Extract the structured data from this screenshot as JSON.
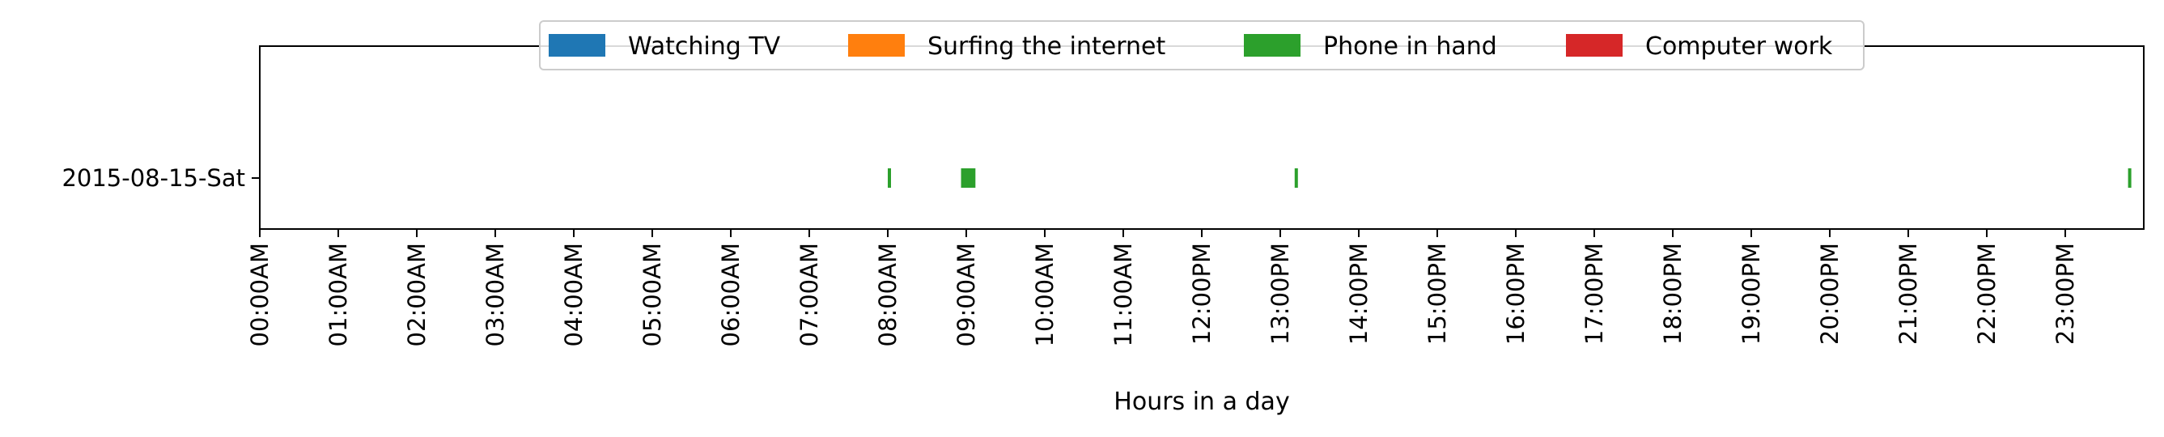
{
  "chart_data": {
    "type": "timeline",
    "xlabel": "Hours in a day",
    "ylabel": "",
    "xlim": [
      "00:00",
      "24:00"
    ],
    "x_tick_labels": [
      "00:00AM",
      "01:00AM",
      "02:00AM",
      "03:00AM",
      "04:00AM",
      "05:00AM",
      "06:00AM",
      "07:00AM",
      "08:00AM",
      "09:00AM",
      "10:00AM",
      "11:00AM",
      "12:00PM",
      "13:00PM",
      "14:00PM",
      "15:00PM",
      "16:00PM",
      "17:00PM",
      "18:00PM",
      "19:00PM",
      "20:00PM",
      "21:00PM",
      "22:00PM",
      "23:00PM"
    ],
    "rows": [
      "2015-08-15-Sat"
    ],
    "legend": {
      "placement": "top-center",
      "entries": [
        {
          "name": "Watching TV",
          "color": "#1f77b4"
        },
        {
          "name": "Surfing the internet",
          "color": "#ff7f0e"
        },
        {
          "name": "Phone in hand",
          "color": "#2ca02c"
        },
        {
          "name": "Computer work",
          "color": "#d62728"
        }
      ]
    },
    "series": [
      {
        "name": "Watching TV",
        "color": "#1f77b4",
        "intervals": []
      },
      {
        "name": "Surfing the internet",
        "color": "#ff7f0e",
        "intervals": []
      },
      {
        "name": "Phone in hand",
        "color": "#2ca02c",
        "intervals": [
          {
            "row": "2015-08-15-Sat",
            "start": "08:00",
            "end": "08:02"
          },
          {
            "row": "2015-08-15-Sat",
            "start": "08:56",
            "end": "09:07"
          },
          {
            "row": "2015-08-15-Sat",
            "start": "13:11",
            "end": "13:13"
          },
          {
            "row": "2015-08-15-Sat",
            "start": "23:48",
            "end": "23:50"
          }
        ]
      },
      {
        "name": "Computer work",
        "color": "#d62728",
        "intervals": []
      }
    ],
    "grid": false
  }
}
